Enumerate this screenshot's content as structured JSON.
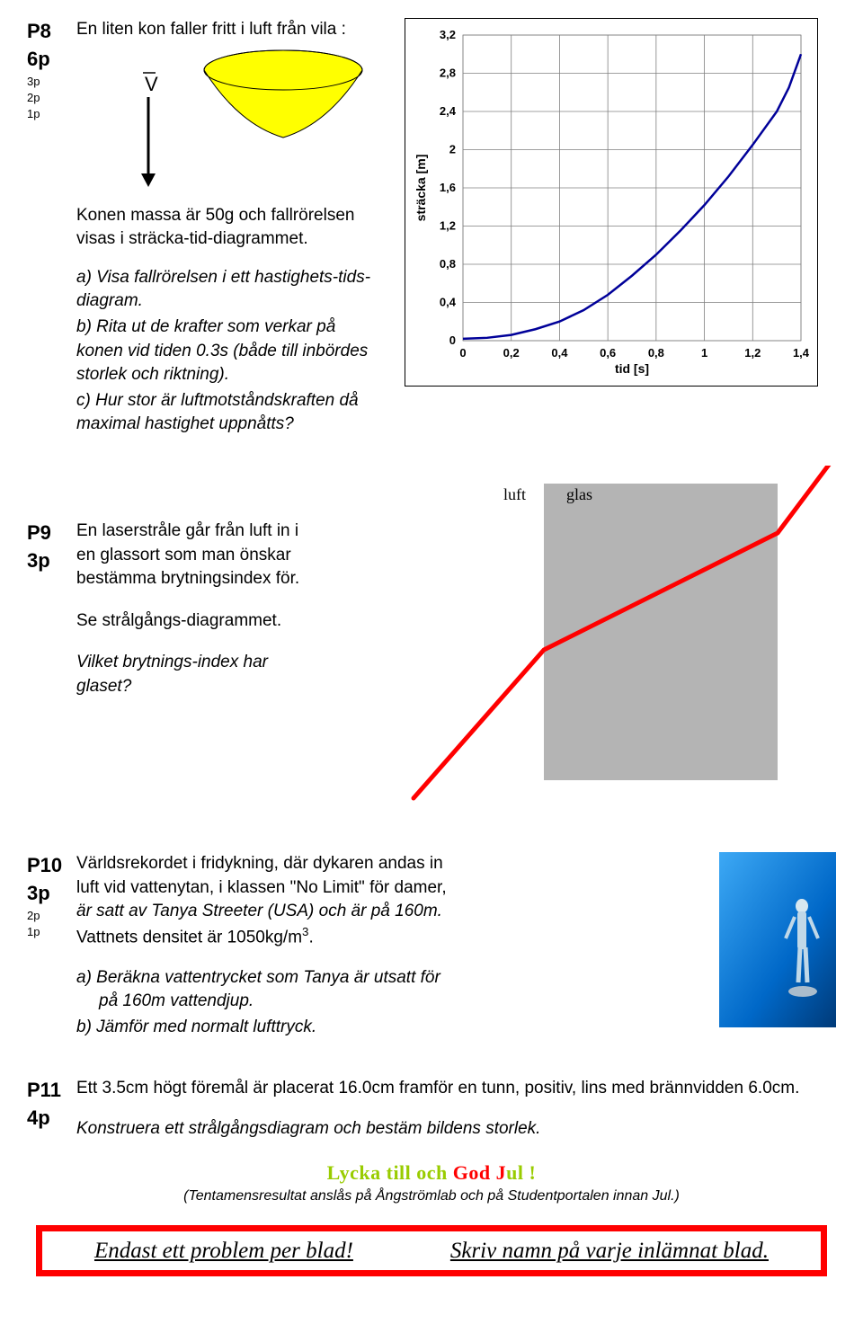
{
  "p8": {
    "label": "P8",
    "sub": "6p",
    "pts": [
      "3p",
      "2p",
      "1p"
    ],
    "intro": "En liten kon faller fritt i luft från vila :",
    "vlabel": "V",
    "mass_line": "Konen massa är 50g och fallrörelsen visas i sträcka-tid-diagrammet.",
    "qa": "a) Visa fallrörelsen i ett hastighets-tids-diagram.",
    "qb": "b) Rita ut de krafter som verkar på konen vid tiden 0.3s (både till inbördes storlek och riktning).",
    "qc": "c) Hur stor är luftmotståndskraften då maximal hastighet uppnåtts?",
    "chart": {
      "ylabel": "sträcka [m]",
      "xlabel": "tid [s]",
      "xticks": [
        "0",
        "0,2",
        "0,4",
        "0,6",
        "0,8",
        "1",
        "1,2",
        "1,4"
      ],
      "yticks": [
        "0",
        "0,4",
        "0,8",
        "1,2",
        "1,6",
        "2",
        "2,4",
        "2,8",
        "3,2"
      ],
      "data_points": [
        [
          0,
          0.02
        ],
        [
          0.1,
          0.03
        ],
        [
          0.2,
          0.06
        ],
        [
          0.3,
          0.12
        ],
        [
          0.4,
          0.2
        ],
        [
          0.5,
          0.32
        ],
        [
          0.6,
          0.48
        ],
        [
          0.7,
          0.68
        ],
        [
          0.8,
          0.9
        ],
        [
          0.9,
          1.15
        ],
        [
          1.0,
          1.42
        ],
        [
          1.1,
          1.72
        ],
        [
          1.2,
          2.05
        ],
        [
          1.3,
          2.4
        ],
        [
          1.35,
          2.65
        ],
        [
          1.4,
          3.0
        ]
      ],
      "xlim": [
        0,
        1.4
      ],
      "ylim": [
        0,
        3.2
      ],
      "line_color": "#000099",
      "line_width": 2.5,
      "grid_color": "#808080",
      "bg": "#ffffff"
    },
    "cone": {
      "fill": "#ffff00",
      "stroke": "#000000"
    }
  },
  "p9": {
    "label": "P9",
    "sub": "3p",
    "q1": "En laserstråle går från luft in i en glassort som man önskar bestämma brytningsindex för.",
    "q2": "Se strålgångs-diagrammet.",
    "q3": "Vilket brytnings-index har  glaset?",
    "diagram": {
      "luft_label": "luft",
      "glas_label": "glas",
      "glass_fill": "#b4b4b4",
      "laser_color": "#ff0000",
      "font": "'Comic Sans MS', cursive"
    }
  },
  "p10": {
    "label": "P10",
    "sub": "3p",
    "pts": [
      "2p",
      "1p"
    ],
    "body_l1": "Världsrekordet i fridykning, där dykaren andas in",
    "body_l2": "luft vid vattenytan, i klassen \"No Limit\" för damer,",
    "body_l3": "är satt av Tanya Streeter (USA) och är på 160m.",
    "body_l4": "Vattnets densitet är 1050kg/m",
    "body_exp": "3",
    "body_end": ".",
    "qa_l1": "a) Beräkna vattentrycket som Tanya är utsatt för",
    "qa_l2": "på 160m vattendjup.",
    "qb": "b) Jämför med normalt lufttryck.",
    "img_bg": "#0070d0"
  },
  "p11": {
    "label": "P11",
    "sub": "4p",
    "l1": "Ett 3.5cm högt föremål är placerat 16.0cm framför en tunn, positiv, lins med brännvidden 6.0cm.",
    "l2": "Konstruera ett strålgångsdiagram och bestäm bildens storlek."
  },
  "footer": {
    "green_part": "Lycka till och ",
    "red_part": "God J",
    "green_suffix": "ul !",
    "green_color": "#99cc00",
    "red_color": "#ff0000",
    "sub": "(Tentamensresultat anslås på Ångströmlab och på Studentportalen innan Jul.)",
    "box_left": "Endast ett problem per blad!",
    "box_right": "Skriv namn på varje inlämnat blad."
  }
}
